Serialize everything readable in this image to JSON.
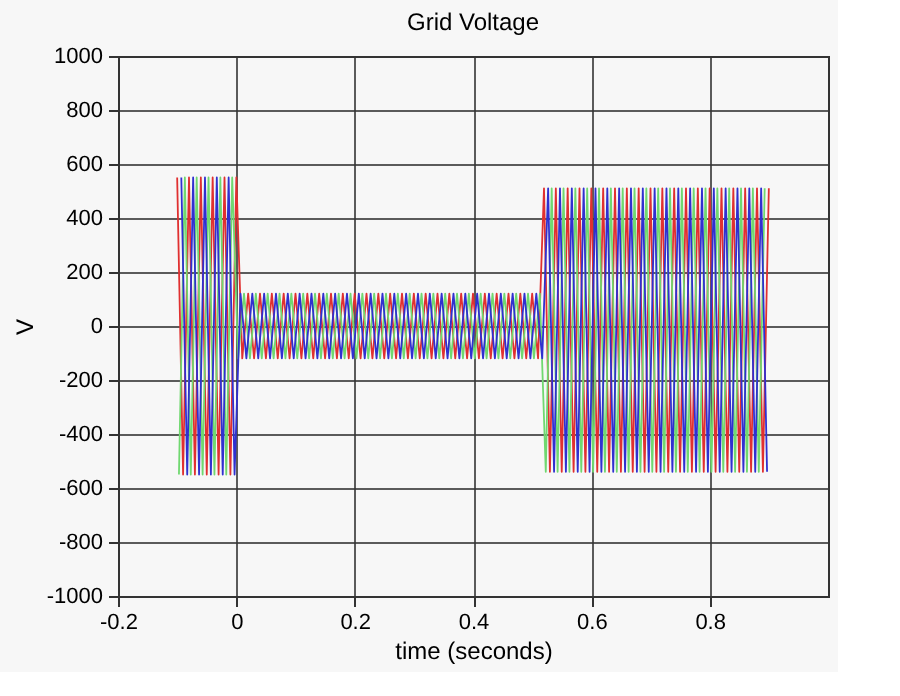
{
  "chart_data": {
    "type": "line",
    "title": "Grid Voltage",
    "xlabel": "time (seconds)",
    "ylabel": "V",
    "xlim": [
      -0.2,
      1.0
    ],
    "xticks": [
      -0.2,
      0,
      0.2,
      0.4,
      0.6,
      0.8
    ],
    "ylim": [
      -1000,
      1000
    ],
    "yticks": [
      -1000,
      -800,
      -600,
      -400,
      -200,
      0,
      200,
      400,
      600,
      800,
      1000
    ],
    "grid": true,
    "marker": "none",
    "line_style": "solid",
    "x": [
      -0.1,
      -0.09,
      -0.08,
      -0.07,
      -0.06,
      -0.05,
      -0.04,
      -0.03,
      -0.02,
      -0.01,
      0,
      0.01,
      0.02,
      0.03,
      0.04,
      0.05,
      0.06,
      0.07,
      0.08,
      0.09,
      0.1,
      0.11,
      0.12,
      0.13,
      0.14,
      0.15,
      0.16,
      0.17,
      0.18,
      0.19,
      0.2,
      0.21,
      0.22,
      0.23,
      0.24,
      0.25,
      0.26,
      0.27,
      0.28,
      0.29,
      0.3,
      0.31,
      0.32,
      0.33,
      0.34,
      0.35,
      0.36,
      0.37,
      0.38,
      0.39,
      0.4,
      0.41,
      0.42,
      0.43,
      0.44,
      0.45,
      0.46,
      0.47,
      0.48,
      0.49,
      0.5,
      0.51,
      0.52,
      0.53,
      0.54,
      0.55,
      0.56,
      0.57,
      0.58,
      0.59,
      0.6,
      0.61,
      0.62,
      0.63,
      0.64,
      0.65,
      0.66,
      0.67,
      0.68,
      0.69,
      0.7,
      0.71,
      0.72,
      0.73,
      0.74,
      0.75,
      0.76,
      0.77,
      0.78,
      0.79,
      0.8,
      0.81,
      0.82,
      0.83,
      0.84,
      0.85,
      0.86,
      0.87,
      0.88,
      0.89,
      0.9
    ],
    "series": [
      {
        "color": "#e03030",
        "values": [
          550,
          -550,
          550,
          -550,
          550,
          -550,
          550,
          -550,
          550,
          -550,
          550,
          -120,
          120,
          -120,
          120,
          -120,
          120,
          -120,
          120,
          -120,
          120,
          -120,
          120,
          -120,
          120,
          -120,
          120,
          -120,
          120,
          -120,
          120,
          -120,
          120,
          -120,
          120,
          -120,
          120,
          -120,
          120,
          -120,
          120,
          -120,
          120,
          -120,
          120,
          -120,
          120,
          -120,
          120,
          -120,
          120,
          -120,
          120,
          -120,
          120,
          -120,
          120,
          -120,
          120,
          -120,
          120,
          -120,
          510,
          -540,
          510,
          -540,
          510,
          -540,
          510,
          -540,
          510,
          -540,
          510,
          -540,
          510,
          -540,
          510,
          -540,
          510,
          -540,
          510,
          -540,
          510,
          -540,
          510,
          -540,
          510,
          -540,
          510,
          -540,
          510,
          -540,
          510,
          -540,
          510,
          -540,
          510,
          -540,
          510,
          -540,
          510
        ]
      },
      {
        "color": "#70d870",
        "x": [
          -0.097,
          -0.087,
          -0.077,
          -0.067,
          -0.057,
          -0.047,
          -0.037,
          -0.027,
          -0.017,
          -0.007,
          0.003,
          0.013,
          0.023,
          0.033,
          0.043,
          0.053,
          0.063,
          0.073,
          0.083,
          0.093,
          0.103,
          0.113,
          0.123,
          0.133,
          0.143,
          0.153,
          0.163,
          0.173,
          0.183,
          0.193,
          0.203,
          0.213,
          0.223,
          0.233,
          0.243,
          0.253,
          0.263,
          0.273,
          0.283,
          0.293,
          0.303,
          0.313,
          0.323,
          0.333,
          0.343,
          0.353,
          0.363,
          0.373,
          0.383,
          0.393,
          0.403,
          0.413,
          0.423,
          0.433,
          0.443,
          0.453,
          0.463,
          0.473,
          0.483,
          0.493,
          0.503,
          0.513,
          0.523,
          0.533,
          0.543,
          0.553,
          0.563,
          0.573,
          0.583,
          0.593,
          0.603,
          0.613,
          0.623,
          0.633,
          0.643,
          0.653,
          0.663,
          0.673,
          0.683,
          0.693,
          0.703,
          0.713,
          0.723,
          0.733,
          0.743,
          0.753,
          0.763,
          0.773,
          0.783,
          0.793,
          0.803,
          0.813,
          0.823,
          0.833,
          0.843,
          0.853,
          0.863,
          0.873,
          0.883,
          0.893
        ],
        "values": [
          -550,
          550,
          -550,
          550,
          -550,
          550,
          -550,
          550,
          -550,
          550,
          -120,
          120,
          -120,
          120,
          -120,
          120,
          -120,
          120,
          -120,
          120,
          -120,
          120,
          -120,
          120,
          -120,
          120,
          -120,
          120,
          -120,
          120,
          -120,
          120,
          -120,
          120,
          -120,
          120,
          -120,
          120,
          -120,
          120,
          -120,
          120,
          -120,
          120,
          -120,
          120,
          -120,
          120,
          -120,
          120,
          -120,
          120,
          -120,
          120,
          -120,
          120,
          -120,
          120,
          -120,
          120,
          -120,
          120,
          -540,
          510,
          -540,
          510,
          -540,
          510,
          -540,
          510,
          -540,
          510,
          -540,
          510,
          -540,
          510,
          -540,
          510,
          -540,
          510,
          -540,
          510,
          -540,
          510,
          -540,
          510,
          -540,
          510,
          -540,
          510,
          -540,
          510,
          -540,
          510,
          -540,
          510,
          -540,
          510,
          -540,
          510
        ]
      },
      {
        "color": "#3030d0",
        "x": [
          -0.093,
          -0.083,
          -0.073,
          -0.063,
          -0.053,
          -0.043,
          -0.033,
          -0.023,
          -0.013,
          -0.003,
          0.007,
          0.017,
          0.027,
          0.037,
          0.047,
          0.057,
          0.067,
          0.077,
          0.087,
          0.097,
          0.107,
          0.117,
          0.127,
          0.137,
          0.147,
          0.157,
          0.167,
          0.177,
          0.187,
          0.197,
          0.207,
          0.217,
          0.227,
          0.237,
          0.247,
          0.257,
          0.267,
          0.277,
          0.287,
          0.297,
          0.307,
          0.317,
          0.327,
          0.337,
          0.347,
          0.357,
          0.367,
          0.377,
          0.387,
          0.397,
          0.407,
          0.417,
          0.427,
          0.437,
          0.447,
          0.457,
          0.467,
          0.477,
          0.487,
          0.497,
          0.507,
          0.517,
          0.527,
          0.537,
          0.547,
          0.557,
          0.567,
          0.577,
          0.587,
          0.597,
          0.607,
          0.617,
          0.627,
          0.637,
          0.647,
          0.657,
          0.667,
          0.677,
          0.687,
          0.697,
          0.707,
          0.717,
          0.727,
          0.737,
          0.747,
          0.757,
          0.767,
          0.777,
          0.787,
          0.797,
          0.807,
          0.817,
          0.827,
          0.837,
          0.847,
          0.857,
          0.867,
          0.877,
          0.887,
          0.897
        ],
        "values": [
          550,
          -550,
          550,
          -550,
          550,
          -550,
          550,
          -550,
          550,
          -550,
          120,
          -120,
          120,
          -120,
          120,
          -120,
          120,
          -120,
          120,
          -120,
          120,
          -120,
          120,
          -120,
          120,
          -120,
          120,
          -120,
          120,
          -120,
          120,
          -120,
          120,
          -120,
          120,
          -120,
          120,
          -120,
          120,
          -120,
          120,
          -120,
          120,
          -120,
          120,
          -120,
          120,
          -120,
          120,
          -120,
          120,
          -120,
          120,
          -120,
          120,
          -120,
          120,
          -120,
          120,
          -120,
          120,
          -120,
          510,
          -540,
          510,
          -540,
          510,
          -540,
          510,
          -540,
          510,
          -540,
          510,
          -540,
          510,
          -540,
          510,
          -540,
          510,
          -540,
          510,
          -540,
          510,
          -540,
          510,
          -540,
          510,
          -540,
          510,
          -540,
          510,
          -540,
          510,
          -540,
          510,
          -540,
          510,
          -540,
          510,
          -540
        ]
      }
    ]
  }
}
